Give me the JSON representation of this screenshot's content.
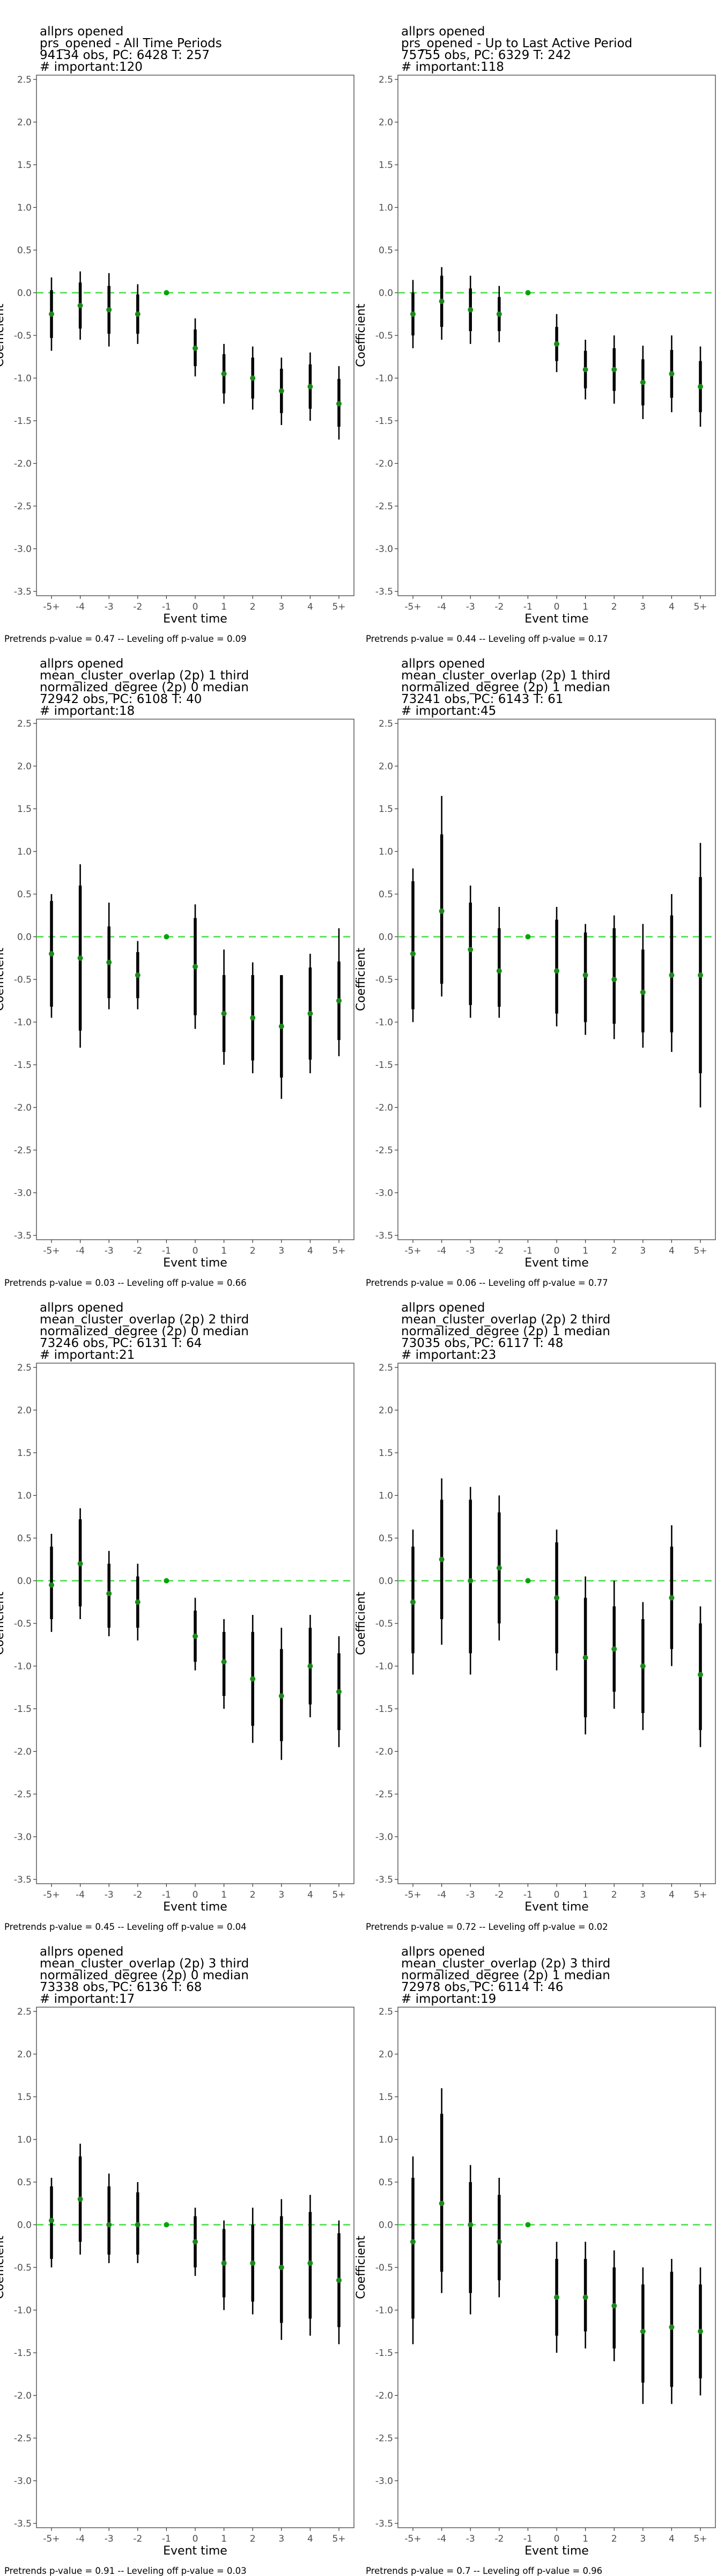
{
  "chart_data": [
    {
      "type": "scatter",
      "title_lines": [
        "allprs opened",
        "prs_opened - All Time Periods",
        "94134 obs, PC: 6428 T: 257",
        "# important:120"
      ],
      "caption": "Pretrends p-value = 0.47 -- Leveling off p-value = 0.09",
      "xlabel": "Event time",
      "ylabel": "Coefficient",
      "categories": [
        "-5+",
        "-4",
        "-3",
        "-2",
        "-1",
        "0",
        "1",
        "2",
        "3",
        "4",
        "5+"
      ],
      "estimate": [
        -0.25,
        -0.15,
        -0.2,
        -0.25,
        0,
        -0.65,
        -0.95,
        -1.0,
        -1.15,
        -1.1,
        -1.3
      ],
      "ci_low": [
        -0.68,
        -0.55,
        -0.63,
        -0.6,
        0,
        -0.98,
        -1.3,
        -1.37,
        -1.55,
        -1.5,
        -1.72
      ],
      "ci_high": [
        0.18,
        0.25,
        0.23,
        0.1,
        0,
        -0.3,
        -0.6,
        -0.63,
        -0.76,
        -0.7,
        -0.86
      ],
      "ci90_low": [
        -0.53,
        -0.42,
        -0.48,
        -0.48,
        0,
        -0.86,
        -1.18,
        -1.24,
        -1.41,
        -1.36,
        -1.57
      ],
      "ci90_high": [
        0.03,
        0.12,
        0.08,
        -0.02,
        0,
        -0.43,
        -0.72,
        -0.76,
        -0.89,
        -0.84,
        -1.01
      ],
      "ylim": [
        -3.5,
        2.5
      ],
      "yticks": [
        "2.5",
        "2.0",
        "1.5",
        "1.0",
        "0.5",
        "0.0",
        "-0.5",
        "-1.0",
        "-1.5",
        "-2.0",
        "-2.5",
        "-3.0",
        "-3.5"
      ],
      "reference_line": 0
    },
    {
      "type": "scatter",
      "title_lines": [
        "allprs opened",
        "prs_opened - Up to Last Active Period",
        "75755 obs, PC: 6329 T: 242",
        "# important:118"
      ],
      "caption": "Pretrends p-value = 0.44 -- Leveling off p-value = 0.17",
      "xlabel": "Event time",
      "ylabel": "Coefficient",
      "categories": [
        "-5+",
        "-4",
        "-3",
        "-2",
        "-1",
        "0",
        "1",
        "2",
        "3",
        "4",
        "5+"
      ],
      "estimate": [
        -0.25,
        -0.1,
        -0.2,
        -0.25,
        0,
        -0.6,
        -0.9,
        -0.9,
        -1.05,
        -0.95,
        -1.1
      ],
      "ci_low": [
        -0.65,
        -0.55,
        -0.6,
        -0.58,
        0,
        -0.93,
        -1.25,
        -1.3,
        -1.48,
        -1.4,
        -1.57
      ],
      "ci_high": [
        0.15,
        0.3,
        0.2,
        0.08,
        0,
        -0.25,
        -0.55,
        -0.5,
        -0.62,
        -0.5,
        -0.63
      ],
      "ci90_low": [
        -0.5,
        -0.4,
        -0.45,
        -0.45,
        0,
        -0.8,
        -1.12,
        -1.15,
        -1.32,
        -1.23,
        -1.4
      ],
      "ci90_high": [
        0.0,
        0.2,
        0.05,
        -0.05,
        0,
        -0.4,
        -0.68,
        -0.65,
        -0.78,
        -0.67,
        -0.8
      ],
      "ylim": [
        -3.5,
        2.5
      ],
      "yticks": [
        "2.5",
        "2.0",
        "1.5",
        "1.0",
        "0.5",
        "0.0",
        "-0.5",
        "-1.0",
        "-1.5",
        "-2.0",
        "-2.5",
        "-3.0",
        "-3.5"
      ],
      "reference_line": 0
    },
    {
      "type": "scatter",
      "title_lines": [
        "allprs opened",
        "mean_cluster_overlap (2p) 1 third",
        "normalized_degree (2p) 0 median",
        "72942 obs, PC: 6108 T: 40",
        "# important:18"
      ],
      "caption": "Pretrends p-value = 0.03 -- Leveling off p-value = 0.66",
      "xlabel": "Event time",
      "ylabel": "Coefficient",
      "categories": [
        "-5+",
        "-4",
        "-3",
        "-2",
        "-1",
        "0",
        "1",
        "2",
        "3",
        "4",
        "5+"
      ],
      "estimate": [
        -0.2,
        -0.25,
        -0.3,
        -0.45,
        0,
        -0.35,
        -0.9,
        -0.95,
        -1.05,
        -0.9,
        -0.75
      ],
      "ci_low": [
        -0.95,
        -1.3,
        -0.85,
        -0.85,
        0,
        -1.08,
        -1.5,
        -1.6,
        -1.9,
        -1.6,
        -1.4
      ],
      "ci_high": [
        0.5,
        0.85,
        0.4,
        -0.05,
        0,
        0.38,
        -0.15,
        -0.3,
        -0.45,
        -0.2,
        0.1
      ],
      "ci90_low": [
        -0.82,
        -1.1,
        -0.72,
        -0.72,
        0,
        -0.92,
        -1.35,
        -1.45,
        -1.65,
        -1.44,
        -1.21
      ],
      "ci90_high": [
        0.42,
        0.6,
        0.12,
        -0.18,
        0,
        0.22,
        -0.45,
        -0.45,
        -0.45,
        -0.36,
        -0.29
      ],
      "ylim": [
        -3.5,
        2.5
      ],
      "yticks": [
        "2.5",
        "2.0",
        "1.5",
        "1.0",
        "0.5",
        "0.0",
        "-0.5",
        "-1.0",
        "-1.5",
        "-2.0",
        "-2.5",
        "-3.0",
        "-3.5"
      ],
      "reference_line": 0
    },
    {
      "type": "scatter",
      "title_lines": [
        "allprs opened",
        "mean_cluster_overlap (2p) 1 third",
        "normalized_degree (2p) 1 median",
        "73241 obs, PC: 6143 T: 61",
        "# important:45"
      ],
      "caption": "Pretrends p-value = 0.06 -- Leveling off p-value = 0.77",
      "xlabel": "Event time",
      "ylabel": "Coefficient",
      "categories": [
        "-5+",
        "-4",
        "-3",
        "-2",
        "-1",
        "0",
        "1",
        "2",
        "3",
        "4",
        "5+"
      ],
      "estimate": [
        -0.2,
        0.3,
        -0.15,
        -0.4,
        0,
        -0.4,
        -0.45,
        -0.5,
        -0.65,
        -0.45,
        -0.45
      ],
      "ci_low": [
        -1.0,
        -0.7,
        -0.95,
        -0.95,
        0,
        -1.05,
        -1.15,
        -1.2,
        -1.3,
        -1.35,
        -2.0
      ],
      "ci_high": [
        0.8,
        1.65,
        0.6,
        0.35,
        0,
        0.35,
        0.15,
        0.25,
        0.15,
        0.5,
        1.1
      ],
      "ci90_low": [
        -0.85,
        -0.55,
        -0.8,
        -0.82,
        0,
        -0.9,
        -1.0,
        -1.02,
        -1.12,
        -1.12,
        -1.6
      ],
      "ci90_high": [
        0.65,
        1.2,
        0.4,
        0.1,
        0,
        0.2,
        0.05,
        0.1,
        -0.15,
        0.25,
        0.7
      ],
      "ylim": [
        -3.5,
        2.5
      ],
      "yticks": [
        "2.5",
        "2.0",
        "1.5",
        "1.0",
        "0.5",
        "0.0",
        "-0.5",
        "-1.0",
        "-1.5",
        "-2.0",
        "-2.5",
        "-3.0",
        "-3.5"
      ],
      "reference_line": 0
    },
    {
      "type": "scatter",
      "title_lines": [
        "allprs opened",
        "mean_cluster_overlap (2p) 2 third",
        "normalized_degree (2p) 0 median",
        "73246 obs, PC: 6131 T: 64",
        "# important:21"
      ],
      "caption": "Pretrends p-value = 0.45 -- Leveling off p-value = 0.04",
      "xlabel": "Event time",
      "ylabel": "Coefficient",
      "categories": [
        "-5+",
        "-4",
        "-3",
        "-2",
        "-1",
        "0",
        "1",
        "2",
        "3",
        "4",
        "5+"
      ],
      "estimate": [
        -0.05,
        0.2,
        -0.15,
        -0.25,
        0,
        -0.65,
        -0.95,
        -1.15,
        -1.35,
        -1.0,
        -1.3
      ],
      "ci_low": [
        -0.6,
        -0.45,
        -0.65,
        -0.7,
        0,
        -1.05,
        -1.5,
        -1.9,
        -2.1,
        -1.6,
        -1.95
      ],
      "ci_high": [
        0.55,
        0.85,
        0.35,
        0.2,
        0,
        -0.2,
        -0.45,
        -0.4,
        -0.55,
        -0.4,
        -0.65
      ],
      "ci90_low": [
        -0.45,
        -0.3,
        -0.55,
        -0.55,
        0,
        -0.95,
        -1.35,
        -1.7,
        -1.88,
        -1.45,
        -1.75
      ],
      "ci90_high": [
        0.4,
        0.72,
        0.2,
        0.05,
        0,
        -0.35,
        -0.6,
        -0.6,
        -0.8,
        -0.55,
        -0.85
      ],
      "ylim": [
        -3.5,
        2.5
      ],
      "yticks": [
        "2.5",
        "2.0",
        "1.5",
        "1.0",
        "0.5",
        "0.0",
        "-0.5",
        "-1.0",
        "-1.5",
        "-2.0",
        "-2.5",
        "-3.0",
        "-3.5"
      ],
      "reference_line": 0
    },
    {
      "type": "scatter",
      "title_lines": [
        "allprs opened",
        "mean_cluster_overlap (2p) 2 third",
        "normalized_degree (2p) 1 median",
        "73035 obs, PC: 6117 T: 48",
        "# important:23"
      ],
      "caption": "Pretrends p-value = 0.72 -- Leveling off p-value = 0.02",
      "xlabel": "Event time",
      "ylabel": "Coefficient",
      "categories": [
        "-5+",
        "-4",
        "-3",
        "-2",
        "-1",
        "0",
        "1",
        "2",
        "3",
        "4",
        "5+"
      ],
      "estimate": [
        -0.25,
        0.25,
        0.0,
        0.15,
        0,
        -0.2,
        -0.9,
        -0.8,
        -1.0,
        -0.2,
        -1.1
      ],
      "ci_low": [
        -1.1,
        -0.75,
        -1.1,
        -0.7,
        0,
        -1.05,
        -1.8,
        -1.5,
        -1.75,
        -1.0,
        -1.95
      ],
      "ci_high": [
        0.6,
        1.2,
        1.1,
        1.0,
        0,
        0.6,
        0.05,
        0.0,
        -0.25,
        0.65,
        -0.3
      ],
      "ci90_low": [
        -0.85,
        -0.45,
        -0.85,
        -0.5,
        0,
        -0.85,
        -1.6,
        -1.3,
        -1.55,
        -0.8,
        -1.75
      ],
      "ci90_high": [
        0.4,
        0.95,
        0.95,
        0.8,
        0,
        0.45,
        -0.2,
        -0.3,
        -0.45,
        0.4,
        -0.5
      ],
      "ylim": [
        -3.5,
        2.5
      ],
      "yticks": [
        "2.5",
        "2.0",
        "1.5",
        "1.0",
        "0.5",
        "0.0",
        "-0.5",
        "-1.0",
        "-1.5",
        "-2.0",
        "-2.5",
        "-3.0",
        "-3.5"
      ],
      "reference_line": 0
    },
    {
      "type": "scatter",
      "title_lines": [
        "allprs opened",
        "mean_cluster_overlap (2p) 3 third",
        "normalized_degree (2p) 0 median",
        "73338 obs, PC: 6136 T: 68",
        "# important:17"
      ],
      "caption": "Pretrends p-value = 0.91 -- Leveling off p-value = 0.03",
      "xlabel": "Event time",
      "ylabel": "Coefficient",
      "categories": [
        "-5+",
        "-4",
        "-3",
        "-2",
        "-1",
        "0",
        "1",
        "2",
        "3",
        "4",
        "5+"
      ],
      "estimate": [
        0.05,
        0.3,
        0.0,
        0.0,
        0,
        -0.2,
        -0.45,
        -0.45,
        -0.5,
        -0.45,
        -0.65
      ],
      "ci_low": [
        -0.5,
        -0.35,
        -0.45,
        -0.45,
        0,
        -0.6,
        -1.0,
        -1.05,
        -1.35,
        -1.3,
        -1.4
      ],
      "ci_high": [
        0.55,
        0.95,
        0.6,
        0.5,
        0,
        0.2,
        0.05,
        0.2,
        0.3,
        0.35,
        0.05
      ],
      "ci90_low": [
        -0.4,
        -0.2,
        -0.35,
        -0.35,
        0,
        -0.5,
        -0.85,
        -0.9,
        -1.15,
        -1.1,
        -1.2
      ],
      "ci90_high": [
        0.45,
        0.8,
        0.45,
        0.38,
        0,
        0.1,
        -0.05,
        0.0,
        0.1,
        0.15,
        -0.1
      ],
      "ylim": [
        -3.5,
        2.5
      ],
      "yticks": [
        "2.5",
        "2.0",
        "1.5",
        "1.0",
        "0.5",
        "0.0",
        "-0.5",
        "-1.0",
        "-1.5",
        "-2.0",
        "-2.5",
        "-3.0",
        "-3.5"
      ],
      "reference_line": 0
    },
    {
      "type": "scatter",
      "title_lines": [
        "allprs opened",
        "mean_cluster_overlap (2p) 3 third",
        "normalized_degree (2p) 1 median",
        "72978 obs, PC: 6114 T: 46",
        "# important:19"
      ],
      "caption": "Pretrends p-value = 0.7 -- Leveling off p-value = 0.96",
      "xlabel": "Event time",
      "ylabel": "Coefficient",
      "categories": [
        "-5+",
        "-4",
        "-3",
        "-2",
        "-1",
        "0",
        "1",
        "2",
        "3",
        "4",
        "5+"
      ],
      "estimate": [
        -0.2,
        0.25,
        0.0,
        -0.2,
        0,
        -0.85,
        -0.85,
        -0.95,
        -1.25,
        -1.2,
        -1.25
      ],
      "ci_low": [
        -1.4,
        -0.8,
        -1.05,
        -0.85,
        0,
        -1.5,
        -1.45,
        -1.6,
        -2.1,
        -2.1,
        -2.0
      ],
      "ci_high": [
        0.8,
        1.6,
        0.7,
        0.55,
        0,
        -0.2,
        -0.2,
        -0.3,
        -0.5,
        -0.4,
        -0.5
      ],
      "ci90_low": [
        -1.1,
        -0.55,
        -0.8,
        -0.65,
        0,
        -1.3,
        -1.25,
        -1.45,
        -1.85,
        -1.9,
        -1.8
      ],
      "ci90_high": [
        0.55,
        1.3,
        0.5,
        0.35,
        0,
        -0.4,
        -0.4,
        -0.5,
        -0.7,
        -0.55,
        -0.7
      ],
      "ylim": [
        -3.5,
        2.5
      ],
      "yticks": [
        "2.5",
        "2.0",
        "1.5",
        "1.0",
        "0.5",
        "0.0",
        "-0.5",
        "-1.0",
        "-1.5",
        "-2.0",
        "-2.5",
        "-3.0",
        "-3.5"
      ],
      "reference_line": 0
    }
  ]
}
